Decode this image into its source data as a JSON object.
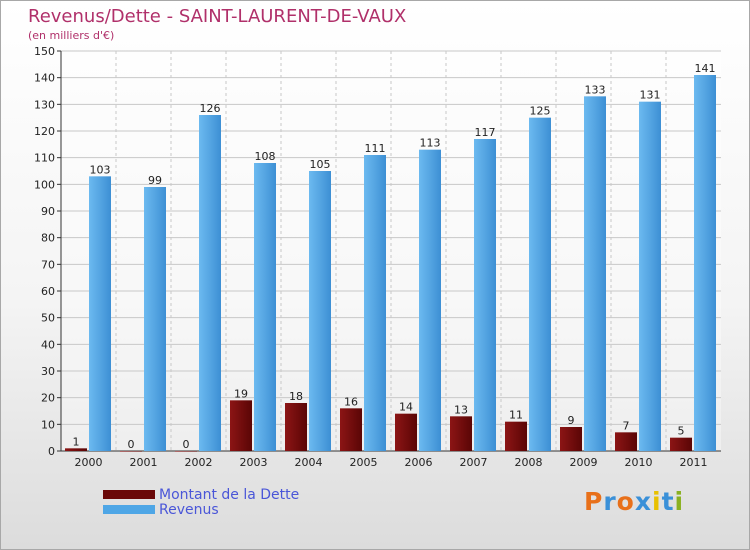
{
  "chart_data": {
    "type": "bar",
    "title": "Revenus/Dette - SAINT-LAURENT-DE-VAUX",
    "subtitle": "(en milliers d'€)",
    "categories": [
      "2000",
      "2001",
      "2002",
      "2003",
      "2004",
      "2005",
      "2006",
      "2007",
      "2008",
      "2009",
      "2010",
      "2011"
    ],
    "series": [
      {
        "name": "Montant de la Dette",
        "color": "#7a0a0a",
        "values": [
          1,
          0,
          0,
          19,
          18,
          16,
          14,
          13,
          11,
          9,
          7,
          5
        ]
      },
      {
        "name": "Revenus",
        "color": "#4ea6e6",
        "values": [
          103,
          99,
          126,
          108,
          105,
          111,
          113,
          117,
          125,
          133,
          131,
          141
        ]
      }
    ],
    "ylim": [
      0,
      150
    ],
    "yticks": [
      0,
      10,
      20,
      30,
      40,
      50,
      60,
      70,
      80,
      90,
      100,
      110,
      120,
      130,
      140,
      150
    ],
    "grid": true,
    "legend_position": "bottom-left"
  },
  "logo": {
    "letters": [
      {
        "ch": "P",
        "color": "#e8701a"
      },
      {
        "ch": "r",
        "color": "#3a90d8"
      },
      {
        "ch": "o",
        "color": "#e8701a"
      },
      {
        "ch": "x",
        "color": "#3a90d8"
      },
      {
        "ch": "i",
        "color": "#e8c000"
      },
      {
        "ch": "t",
        "color": "#3a90d8"
      },
      {
        "ch": "i",
        "color": "#8ab020"
      }
    ]
  }
}
